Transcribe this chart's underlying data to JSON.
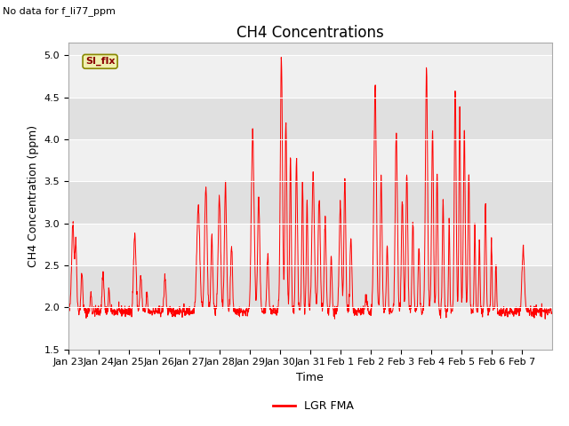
{
  "title": "CH4 Concentrations",
  "xlabel": "Time",
  "ylabel": "CH4 Concentration (ppm)",
  "top_left_note": "No data for f_li77_ppm",
  "si_flx_label": "SI_flx",
  "legend_label": "LGR FMA",
  "line_color": "#ff0000",
  "ylim": [
    1.5,
    5.15
  ],
  "yticks": [
    1.5,
    2.0,
    2.5,
    3.0,
    3.5,
    4.0,
    4.5,
    5.0
  ],
  "background_color": "#ffffff",
  "plot_bg_color": "#e8e8e8",
  "band_color_light": "#f0f0f0",
  "band_color_dark": "#e0e0e0",
  "title_fontsize": 12,
  "axis_label_fontsize": 9,
  "tick_fontsize": 8,
  "day_labels": [
    "Jan 23",
    "Jan 24",
    "Jan 25",
    "Jan 26",
    "Jan 27",
    "Jan 28",
    "Jan 29",
    "Jan 30",
    "Jan 31",
    "Feb 1",
    "Feb 2",
    "Feb 3",
    "Feb 4",
    "Feb 5",
    "Feb 6",
    "Feb 7"
  ]
}
